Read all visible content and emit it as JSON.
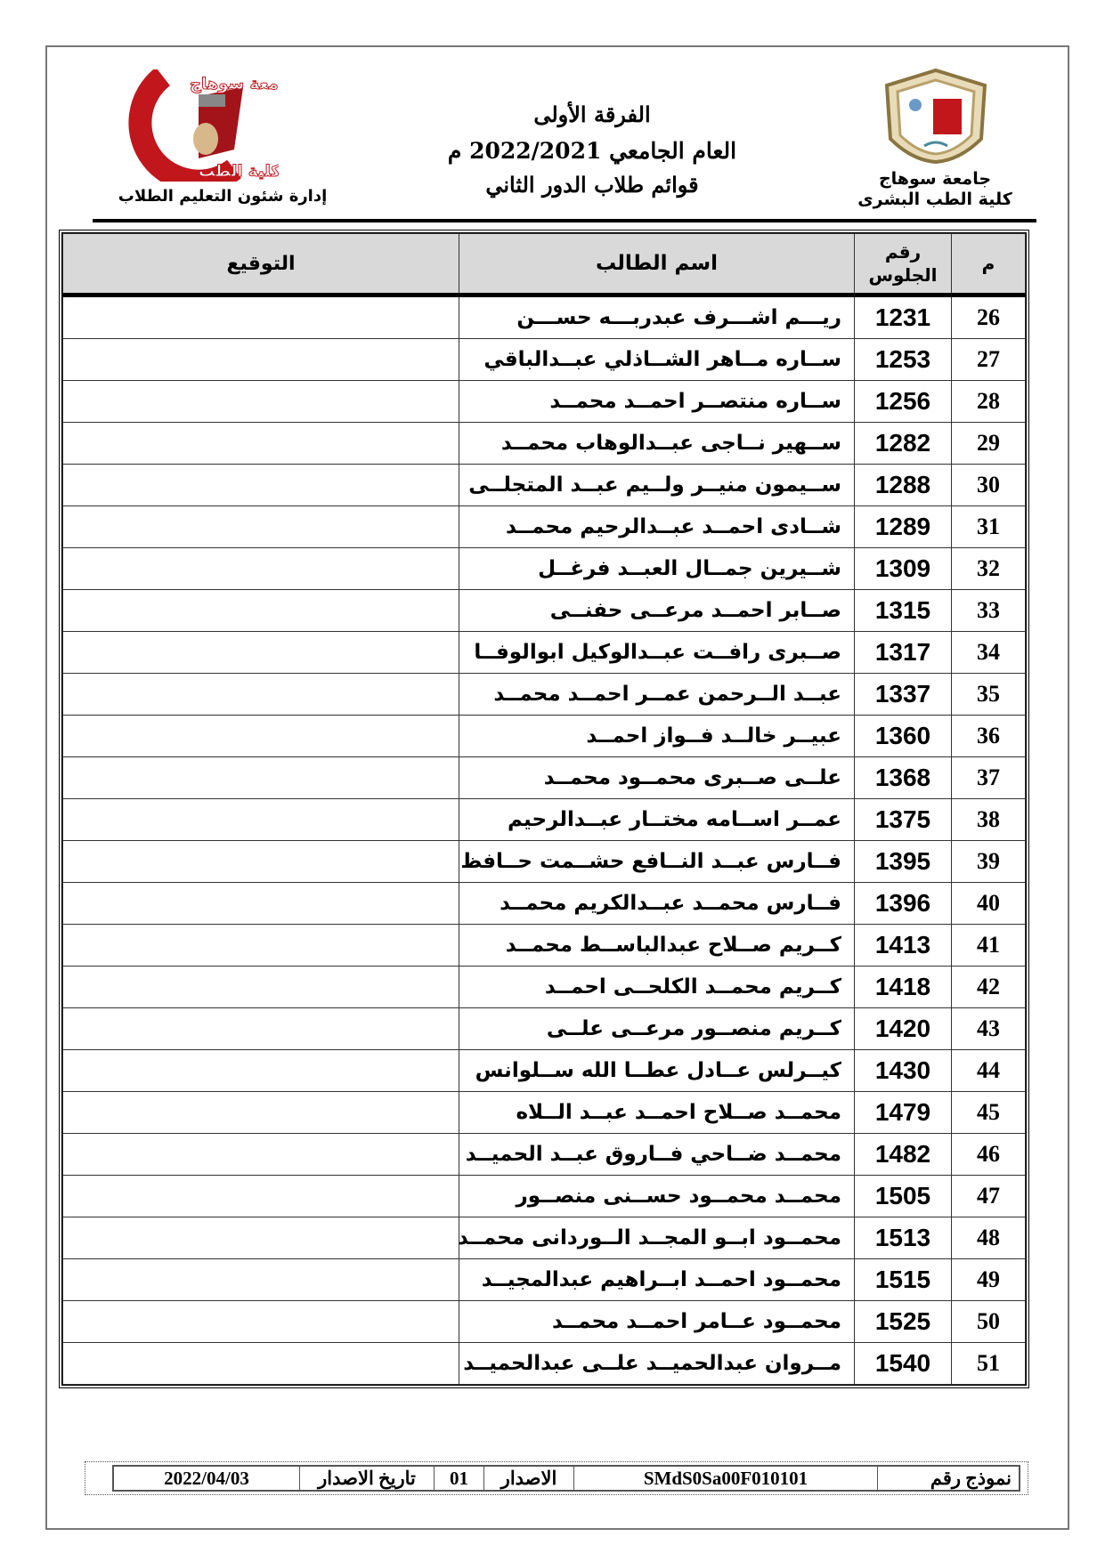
{
  "header": {
    "right_org": [
      "جامعة سوهاج",
      "كلية الطب البشرى"
    ],
    "left_org": "إدارة شئون التعليم الطلاب",
    "left_logo_text": [
      "جامعة سوهاج",
      "كلية الطب"
    ],
    "title_lines": [
      "الفرقة الأولى",
      "العام الجامعي 2022/2021 م",
      "قوائم طلاب الدور الثاني"
    ]
  },
  "table": {
    "columns": [
      "م",
      "رقم الجلوس",
      "اسم الطالب",
      "التوقيع"
    ],
    "rows": [
      {
        "n": "26",
        "seat": "1231",
        "name": "ريـــم اشـــرف عبدربـــه حســـن"
      },
      {
        "n": "27",
        "seat": "1253",
        "name": "ســاره مــاهر الشــاذلي عبــدالباقي"
      },
      {
        "n": "28",
        "seat": "1256",
        "name": "ســاره منتصــر احمــد محمــد"
      },
      {
        "n": "29",
        "seat": "1282",
        "name": "ســهير نــاجى عبــدالوهاب محمــد"
      },
      {
        "n": "30",
        "seat": "1288",
        "name": "ســيمون منيــر ولــيم عبــد المتجلــى"
      },
      {
        "n": "31",
        "seat": "1289",
        "name": "شــادى احمــد عبــدالرحيم محمــد"
      },
      {
        "n": "32",
        "seat": "1309",
        "name": "شــيرين جمــال العبــد فرغــل"
      },
      {
        "n": "33",
        "seat": "1315",
        "name": "صــابر احمــد مرعــى حفنــى"
      },
      {
        "n": "34",
        "seat": "1317",
        "name": "صــبرى رافــت عبــدالوكيل ابوالوفــا"
      },
      {
        "n": "35",
        "seat": "1337",
        "name": "عبــد الــرحمن عمــر احمــد محمــد"
      },
      {
        "n": "36",
        "seat": "1360",
        "name": "عبيــر خالــد فــواز احمــد"
      },
      {
        "n": "37",
        "seat": "1368",
        "name": "علــى صــبرى محمــود محمــد"
      },
      {
        "n": "38",
        "seat": "1375",
        "name": "عمــر اســامه مختــار عبــدالرحيم"
      },
      {
        "n": "39",
        "seat": "1395",
        "name": "فــارس عبــد النــافع حشــمت حــافظ"
      },
      {
        "n": "40",
        "seat": "1396",
        "name": "فــارس محمــد عبــدالكريم محمــد"
      },
      {
        "n": "41",
        "seat": "1413",
        "name": "كــريم صــلاح عبدالباســط محمــد"
      },
      {
        "n": "42",
        "seat": "1418",
        "name": "كــريم محمــد الكلحــى احمــد"
      },
      {
        "n": "43",
        "seat": "1420",
        "name": "كــريم منصــور مرعــى علــى"
      },
      {
        "n": "44",
        "seat": "1430",
        "name": "كيــرلس عــادل عطــا الله ســلوانس"
      },
      {
        "n": "45",
        "seat": "1479",
        "name": "محمــد صــلاح احمــد عبــد الــلاه"
      },
      {
        "n": "46",
        "seat": "1482",
        "name": "محمــد ضــاحي فــاروق عبــد الحميــد"
      },
      {
        "n": "47",
        "seat": "1505",
        "name": "محمــد محمــود حســنى منصــور"
      },
      {
        "n": "48",
        "seat": "1513",
        "name": "محمــود ابــو المجــد الــوردانى محمــد"
      },
      {
        "n": "49",
        "seat": "1515",
        "name": "محمــود احمــد ابــراهيم عبدالمجيــد"
      },
      {
        "n": "50",
        "seat": "1525",
        "name": "محمــود عــامر احمــد محمــد"
      },
      {
        "n": "51",
        "seat": "1540",
        "name": "مــروان عبدالحميــد علــى عبدالحميــد"
      }
    ]
  },
  "footer": {
    "form_label": "نموذج رقم",
    "form_code": "SMdS0Sa00F010101",
    "issue_label": "الاصدار",
    "issue_value": "01",
    "date_label": "تاريخ الاصدار",
    "date_value": "2022/04/03"
  },
  "colors": {
    "logo_red": "#c0161c",
    "seal_gold": "#b8a06a",
    "header_gray": "#d9d9d9"
  }
}
